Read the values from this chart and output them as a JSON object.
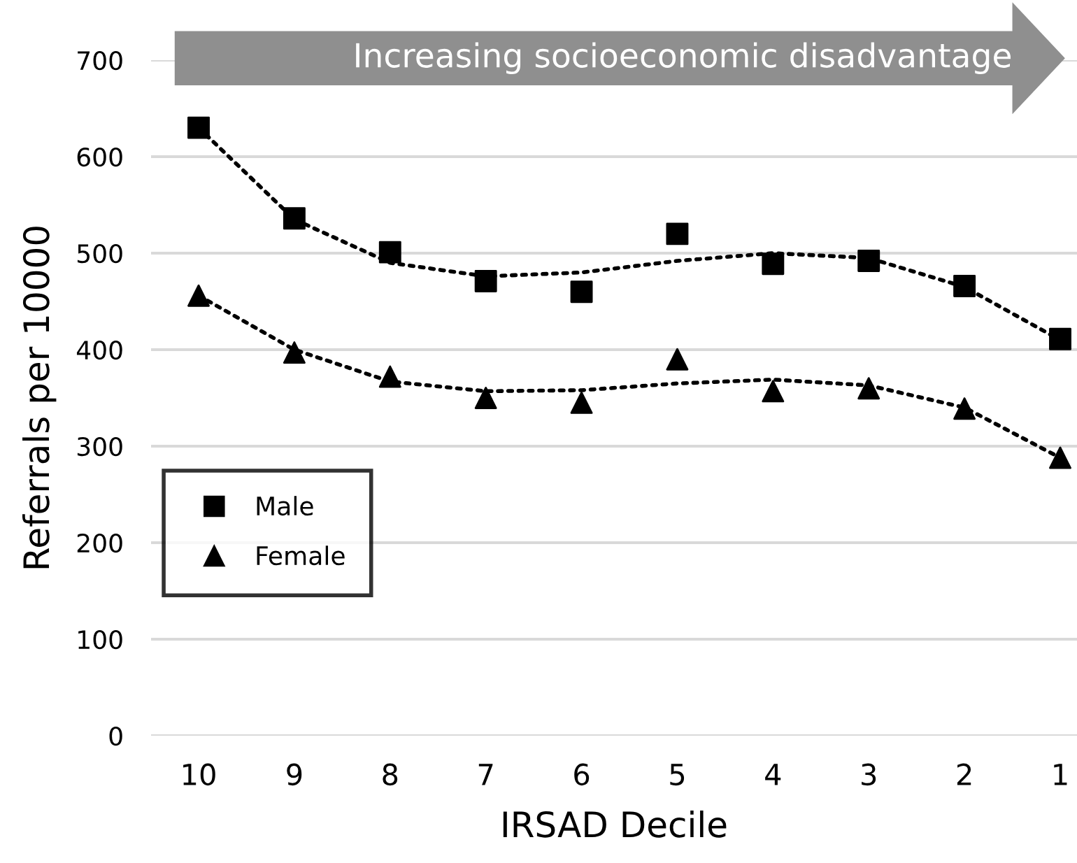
{
  "chart_data": {
    "type": "scatter",
    "xlabel": "IRSAD Decile",
    "ylabel": "Referrals per 10000",
    "categories": [
      "10",
      "9",
      "8",
      "7",
      "6",
      "5",
      "4",
      "3",
      "2",
      "1"
    ],
    "series": [
      {
        "name": "Male",
        "color": "#000000",
        "marker": "square",
        "values": [
          630,
          536,
          501,
          471,
          460,
          520,
          489,
          492,
          466,
          411
        ]
      },
      {
        "name": "Female",
        "color": "#000000",
        "marker": "triangle",
        "values": [
          456,
          397,
          372,
          350,
          345,
          390,
          357,
          360,
          339,
          288
        ]
      },
      {
        "type": "line",
        "color": "#000000",
        "line_style": "dotted",
        "marker": "none",
        "values": [
          630,
          535,
          490,
          476,
          480,
          492,
          500,
          495,
          465,
          410
        ]
      },
      {
        "type": "line",
        "color": "#000000",
        "line_style": "dotted",
        "marker": "none",
        "values": [
          456,
          400,
          367,
          357,
          358,
          365,
          369,
          363,
          340,
          288
        ]
      }
    ],
    "ylim": [
      0,
      700
    ],
    "yticks": [
      0,
      100,
      200,
      300,
      400,
      500,
      600,
      700
    ],
    "grid": "y",
    "legend": "left",
    "annotations": [
      "Increasing socioeconomic disadvantage"
    ]
  }
}
